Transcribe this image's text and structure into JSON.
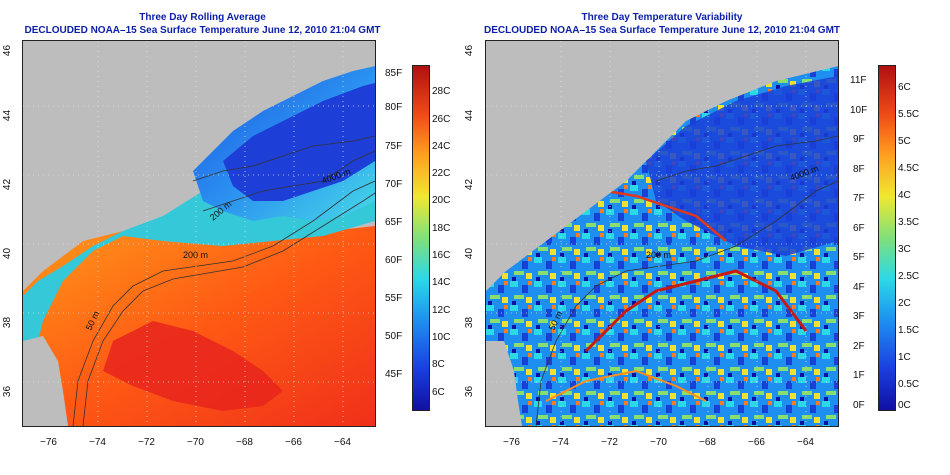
{
  "panels": [
    {
      "title": "Three Day Rolling Average",
      "subtitle": "DECLOUDED NOAA–15 Sea Surface Temperature June 12, 2010 21:04 GMT",
      "colorbar_left": [
        "85F",
        "80F",
        "75F",
        "70F",
        "65F",
        "60F",
        "55F",
        "50F",
        "45F"
      ],
      "colorbar_right": [
        "28C",
        "26C",
        "24C",
        "22C",
        "20C",
        "18C",
        "16C",
        "14C",
        "12C",
        "10C",
        "8C",
        "6C"
      ],
      "contours": [
        "4000 m",
        "200 m",
        "50 m",
        "200 m"
      ]
    },
    {
      "title": "Three Day Temperature Variability",
      "subtitle": "DECLOUDED NOAA–15 Sea Surface Temperature June 12, 2010 21:04 GMT",
      "colorbar_left": [
        "11F",
        "10F",
        "9F",
        "8F",
        "7F",
        "6F",
        "5F",
        "4F",
        "3F",
        "2F",
        "1F",
        "0F"
      ],
      "colorbar_right": [
        "6C",
        "5.5C",
        "5C",
        "4.5C",
        "4C",
        "3.5C",
        "3C",
        "2.5C",
        "2C",
        "1.5C",
        "1C",
        "0.5C",
        "0C"
      ],
      "contours": [
        "4000 m",
        "200 m",
        "50 m"
      ]
    }
  ],
  "lat_ticks": [
    "46",
    "44",
    "42",
    "40",
    "38",
    "36"
  ],
  "lon_ticks": [
    "−76",
    "−74",
    "−72",
    "−70",
    "−68",
    "−66",
    "−64"
  ],
  "colors": {
    "title": "#0b1ea8",
    "land": "#bdbdbd"
  }
}
